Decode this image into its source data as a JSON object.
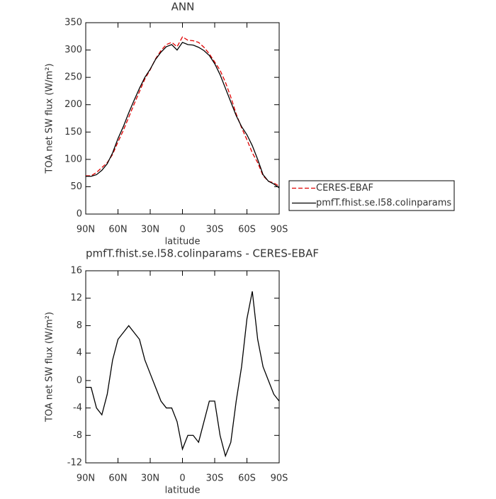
{
  "chart_data": [
    {
      "type": "line",
      "title": "ANN",
      "xlabel": "latitude",
      "ylabel": "TOA net SW flux (W/m²)",
      "x": [
        90,
        85,
        80,
        75,
        70,
        65,
        60,
        55,
        50,
        45,
        40,
        35,
        30,
        25,
        20,
        15,
        10,
        5,
        0,
        -5,
        -10,
        -15,
        -20,
        -25,
        -30,
        -35,
        -40,
        -45,
        -50,
        -55,
        -60,
        -65,
        -70,
        -75,
        -80,
        -85,
        -90
      ],
      "xlim": [
        90,
        -90
      ],
      "xticks": [
        {
          "value": 90,
          "label": "90N"
        },
        {
          "value": 60,
          "label": "60N"
        },
        {
          "value": 30,
          "label": "30N"
        },
        0,
        {
          "value": -30,
          "label": "30S"
        },
        {
          "value": -60,
          "label": "60S"
        },
        {
          "value": -90,
          "label": "90S"
        }
      ],
      "ylim": [
        0,
        350
      ],
      "yticks": [
        0,
        50,
        100,
        150,
        200,
        250,
        300,
        350
      ],
      "legend": "right",
      "series": [
        {
          "name": "CERES-EBAF",
          "color": "#e00000",
          "linestyle": "dashed",
          "values": [
            70,
            70,
            76,
            85,
            94,
            109,
            132,
            153,
            177,
            201,
            224,
            247,
            264,
            284,
            299,
            310,
            314,
            306,
            324,
            318,
            317,
            314,
            305,
            293,
            278,
            263,
            241,
            214,
            183,
            158,
            136,
            112,
            94,
            70,
            60,
            57,
            51
          ]
        },
        {
          "name": "pmfT.fhist.se.l58.colinparams",
          "color": "#000000",
          "linestyle": "solid",
          "values": [
            69,
            69,
            72,
            80,
            92,
            112,
            138,
            160,
            185,
            208,
            230,
            250,
            265,
            283,
            296,
            306,
            310,
            300,
            314,
            310,
            309,
            305,
            299,
            290,
            275,
            255,
            230,
            205,
            180,
            160,
            145,
            125,
            100,
            72,
            60,
            55,
            48
          ]
        }
      ]
    },
    {
      "type": "line",
      "title": "pmfT.fhist.se.l58.colinparams - CERES-EBAF",
      "xlabel": "latitude",
      "ylabel": "TOA net SW flux (W/m²)",
      "x": [
        90,
        85,
        80,
        75,
        70,
        65,
        60,
        55,
        50,
        45,
        40,
        35,
        30,
        25,
        20,
        15,
        10,
        5,
        0,
        -5,
        -10,
        -15,
        -20,
        -25,
        -30,
        -35,
        -40,
        -45,
        -50,
        -55,
        -60,
        -65,
        -70,
        -75,
        -80,
        -85,
        -90
      ],
      "xlim": [
        90,
        -90
      ],
      "xticks": [
        {
          "value": 90,
          "label": "90N"
        },
        {
          "value": 60,
          "label": "60N"
        },
        {
          "value": 30,
          "label": "30N"
        },
        0,
        {
          "value": -30,
          "label": "30S"
        },
        {
          "value": -60,
          "label": "60S"
        },
        {
          "value": -90,
          "label": "90S"
        }
      ],
      "ylim": [
        -12,
        16
      ],
      "yticks": [
        -12,
        -8,
        -4,
        0,
        4,
        8,
        12,
        16
      ],
      "series": [
        {
          "color": "#000000",
          "linestyle": "solid",
          "values": [
            -1,
            -1,
            -4,
            -5,
            -2,
            3,
            6,
            7,
            8,
            7,
            6,
            3,
            1,
            -1,
            -3,
            -4,
            -4,
            -6,
            -10,
            -8,
            -8,
            -9,
            -6,
            -3,
            -3,
            -8,
            -11,
            -9,
            -3,
            2,
            9,
            13,
            6,
            2,
            0,
            -2,
            -3
          ]
        }
      ]
    }
  ]
}
